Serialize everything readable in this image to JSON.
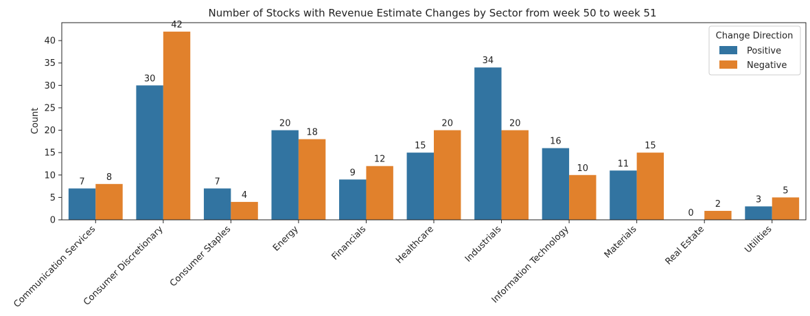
{
  "chart_data": {
    "type": "bar",
    "title": "Number of Stocks with Revenue Estimate Changes by Sector from week 50 to week 51",
    "xlabel": "",
    "ylabel": "Count",
    "ylim": [
      0,
      44
    ],
    "yticks": [
      0,
      5,
      10,
      15,
      20,
      25,
      30,
      35,
      40
    ],
    "categories": [
      "Communication Services",
      "Consumer Discretionary",
      "Consumer Staples",
      "Energy",
      "Financials",
      "Healthcare",
      "Industrials",
      "Information Technology",
      "Materials",
      "Real Estate",
      "Utilities"
    ],
    "series": [
      {
        "name": "Positive",
        "color": "#3274a1",
        "values": [
          7,
          30,
          7,
          20,
          9,
          15,
          34,
          16,
          11,
          0,
          3
        ]
      },
      {
        "name": "Negative",
        "color": "#e1812c",
        "values": [
          8,
          42,
          4,
          18,
          12,
          20,
          20,
          10,
          15,
          2,
          5
        ]
      }
    ],
    "legend": {
      "title": "Change Direction",
      "position": "top-right"
    },
    "grid": false
  }
}
